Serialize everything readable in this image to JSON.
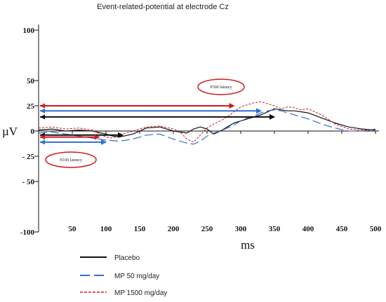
{
  "chart_data": {
    "type": "line",
    "title": "Event-related-potential at electrode Cz",
    "xlabel": "ms",
    "ylabel": "µV",
    "xlim": [
      0,
      500
    ],
    "ylim": [
      -100,
      100
    ],
    "x_ticks": [
      {
        "value": 50,
        "label": "50"
      },
      {
        "value": 100,
        "label": "100"
      },
      {
        "value": 150,
        "label": "150"
      },
      {
        "value": 200,
        "label": "200"
      },
      {
        "value": 250,
        "label": "250"
      },
      {
        "value": 300,
        "label": "300"
      },
      {
        "value": 350,
        "label": "350"
      },
      {
        "value": 400,
        "label": "400"
      },
      {
        "value": 450,
        "label": "450"
      },
      {
        "value": 500,
        "label": "500"
      }
    ],
    "y_ticks": [
      {
        "value": 100,
        "label": "100"
      },
      {
        "value": 50,
        "label": "50"
      },
      {
        "value": 25,
        "label": "25"
      },
      {
        "value": 0,
        "label": "0"
      },
      {
        "value": -25,
        "label": "- 25"
      },
      {
        "value": -50,
        "label": "- 50"
      },
      {
        "value": -100,
        "label": "-100"
      }
    ],
    "grid": false,
    "legend_position": "bottom-left",
    "series": [
      {
        "name": "Placebo",
        "color": "#111111",
        "dash": "solid",
        "x": [
          0,
          20,
          40,
          60,
          80,
          100,
          110,
          120,
          140,
          160,
          180,
          200,
          210,
          220,
          230,
          240,
          250,
          260,
          270,
          280,
          290,
          300,
          310,
          320,
          330,
          340,
          350,
          360,
          370,
          380,
          390,
          400,
          420,
          440,
          460,
          480,
          500
        ],
        "y": [
          1,
          2,
          0,
          1,
          0,
          -3,
          -5,
          -6,
          -3,
          3,
          4,
          0,
          -1,
          -2,
          2,
          4,
          2,
          -3,
          0,
          4,
          8,
          10,
          12,
          14,
          16,
          19,
          22,
          21,
          20,
          20,
          19,
          18,
          13,
          8,
          4,
          2,
          1
        ]
      },
      {
        "name": "MP 50 mg/day",
        "color": "#2f6fd0",
        "dash": "long-dash",
        "x": [
          0,
          20,
          40,
          60,
          80,
          100,
          120,
          140,
          160,
          180,
          200,
          210,
          220,
          230,
          240,
          250,
          260,
          270,
          280,
          290,
          300,
          310,
          320,
          330,
          340,
          350,
          360,
          370,
          380,
          390,
          400,
          420,
          440,
          460,
          480,
          500
        ],
        "y": [
          -2,
          -1,
          -3,
          -5,
          -7,
          -9,
          -10,
          -8,
          -4,
          -3,
          -8,
          -10,
          -12,
          -13,
          -10,
          -5,
          -2,
          0,
          3,
          6,
          10,
          13,
          15,
          18,
          20,
          21,
          20,
          18,
          16,
          14,
          12,
          7,
          3,
          0,
          0,
          2
        ]
      },
      {
        "name": "MP 1500 mg/day",
        "color": "#d01818",
        "dash": "short-dash",
        "x": [
          0,
          20,
          40,
          60,
          80,
          100,
          110,
          120,
          140,
          160,
          180,
          200,
          210,
          220,
          230,
          240,
          250,
          260,
          270,
          280,
          290,
          300,
          310,
          320,
          330,
          340,
          350,
          360,
          370,
          380,
          390,
          400,
          420,
          440,
          460,
          480,
          500
        ],
        "y": [
          3,
          4,
          2,
          3,
          1,
          -6,
          -7,
          -4,
          0,
          4,
          5,
          2,
          -1,
          -8,
          -11,
          -4,
          3,
          7,
          10,
          14,
          19,
          24,
          26,
          28,
          29,
          27,
          25,
          22,
          24,
          23,
          21,
          22,
          16,
          7,
          2,
          1,
          0
        ]
      }
    ],
    "latency_arrows": [
      {
        "color": "#d01818",
        "x1": 0,
        "x2": 290,
        "y": 25
      },
      {
        "color": "#2f6fd0",
        "x1": 0,
        "x2": 330,
        "y": 20
      },
      {
        "color": "#111111",
        "x1": 0,
        "x2": 350,
        "y": 14
      },
      {
        "color": "#111111",
        "x1": 0,
        "x2": 125,
        "y": -4
      },
      {
        "color": "#d01818",
        "x1": 0,
        "x2": 90,
        "y": -6
      },
      {
        "color": "#2f6fd0",
        "x1": 0,
        "x2": 100,
        "y": -11
      }
    ],
    "annotations": [
      {
        "text": "P300 latency",
        "x": 280,
        "y": 39,
        "color": "#d01818"
      },
      {
        "text": "N100 latency",
        "x": 45,
        "y": -26,
        "color": "#d01818"
      }
    ]
  }
}
